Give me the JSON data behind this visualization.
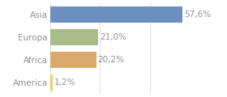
{
  "categories": [
    "Asia",
    "Europa",
    "Africa",
    "America"
  ],
  "values": [
    57.6,
    21.0,
    20.2,
    1.2
  ],
  "bar_colors": [
    "#6b8fbf",
    "#a8bc8a",
    "#d9a96e",
    "#e8d070"
  ],
  "labels": [
    "57,6%",
    "21,0%",
    "20,2%",
    "1,2%"
  ],
  "xlim": [
    0,
    65
  ],
  "background_color": "#ffffff",
  "text_color": "#909090",
  "fontsize": 7.5,
  "bar_height": 0.72,
  "grid_color": "#dddddd",
  "grid_xticks": [
    0,
    21.67,
    43.33,
    65
  ]
}
